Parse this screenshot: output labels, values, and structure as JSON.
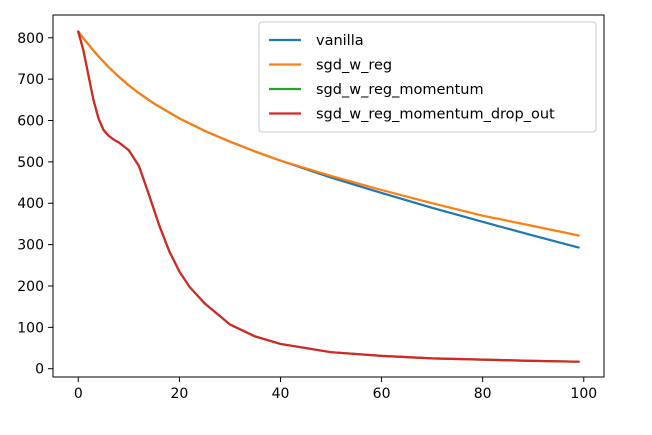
{
  "chart_data": {
    "type": "line",
    "title": "",
    "xlabel": "",
    "ylabel": "",
    "xlim": [
      -5,
      104
    ],
    "ylim": [
      -20,
      855
    ],
    "grid": false,
    "legend_position": "upper-right",
    "x_ticks": [
      0,
      20,
      40,
      60,
      80,
      100
    ],
    "y_ticks": [
      0,
      100,
      200,
      300,
      400,
      500,
      600,
      700,
      800
    ],
    "x_tick_labels": [
      "0",
      "20",
      "40",
      "60",
      "80",
      "100"
    ],
    "y_tick_labels": [
      "0",
      "100",
      "200",
      "300",
      "400",
      "500",
      "600",
      "700",
      "800"
    ],
    "series": [
      {
        "name": "vanilla",
        "color": "#1f77b4",
        "x": [
          0,
          1,
          2,
          3,
          4,
          5,
          6,
          8,
          10,
          12,
          15,
          20,
          25,
          30,
          35,
          40,
          50,
          60,
          70,
          80,
          90,
          99
        ],
        "y": [
          815,
          799,
          784,
          769,
          755,
          742,
          729,
          706,
          685,
          666,
          641,
          605,
          575,
          549,
          525,
          503,
          462,
          425,
          389,
          355,
          322,
          293
        ]
      },
      {
        "name": "sgd_w_reg",
        "color": "#ff7f0e",
        "x": [
          0,
          1,
          2,
          3,
          4,
          5,
          6,
          8,
          10,
          12,
          15,
          20,
          25,
          30,
          35,
          40,
          50,
          60,
          70,
          80,
          90,
          99
        ],
        "y": [
          815,
          799,
          784,
          769,
          755,
          742,
          729,
          706,
          685,
          666,
          641,
          605,
          575,
          549,
          525,
          503,
          466,
          432,
          400,
          370,
          345,
          322
        ]
      },
      {
        "name": "sgd_w_reg_momentum",
        "color": "#2ca02c",
        "x": [
          0,
          1,
          2,
          3,
          4,
          5,
          6,
          7,
          8,
          10,
          12,
          14,
          16,
          18,
          20,
          22,
          25,
          30,
          35,
          40,
          50,
          60,
          70,
          80,
          90,
          99
        ],
        "y": [
          815,
          770,
          710,
          650,
          605,
          577,
          563,
          554,
          547,
          528,
          490,
          420,
          347,
          284,
          235,
          198,
          158,
          107,
          78,
          60,
          40,
          31,
          25,
          22,
          19,
          17
        ]
      },
      {
        "name": "sgd_w_reg_momentum_drop_out",
        "color": "#d62728",
        "x": [
          0,
          1,
          2,
          3,
          4,
          5,
          6,
          7,
          8,
          10,
          12,
          14,
          16,
          18,
          20,
          22,
          25,
          30,
          35,
          40,
          50,
          60,
          70,
          80,
          90,
          99
        ],
        "y": [
          815,
          770,
          710,
          650,
          605,
          577,
          563,
          554,
          547,
          528,
          490,
          420,
          347,
          284,
          235,
          198,
          158,
          107,
          78,
          60,
          40,
          31,
          25,
          22,
          19,
          17
        ]
      }
    ]
  }
}
